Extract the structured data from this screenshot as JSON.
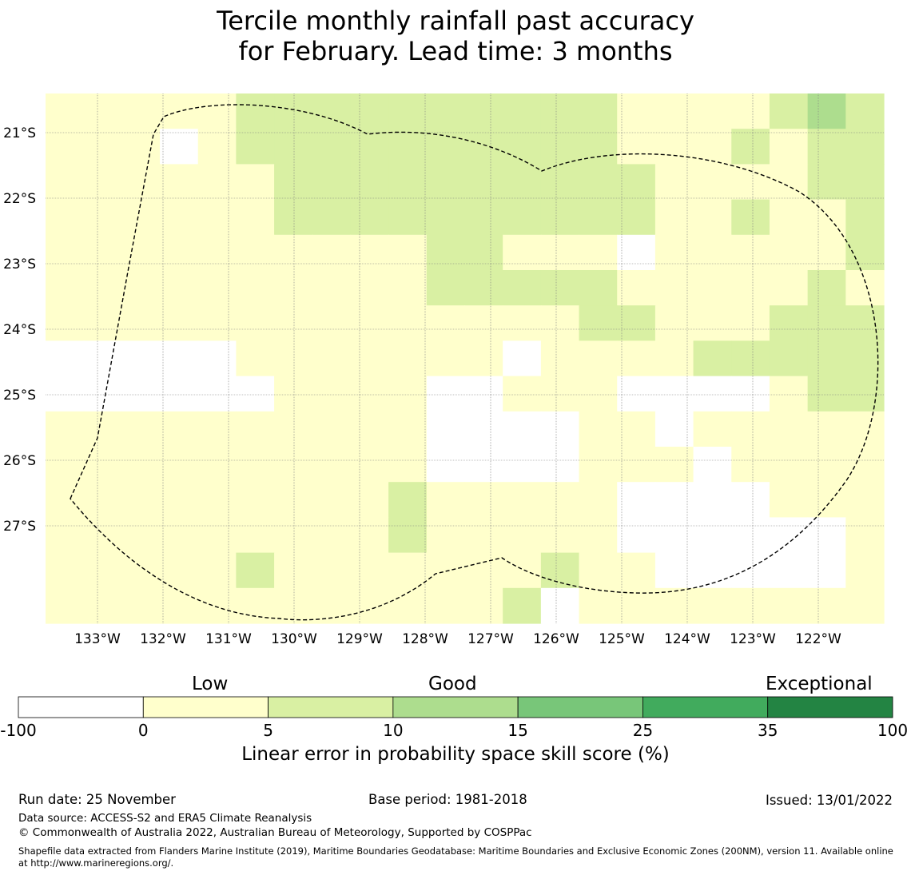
{
  "title": {
    "line1": "Tercile monthly rainfall past accuracy",
    "line2": "for February. Lead time: 3 months"
  },
  "map": {
    "lon_ticks": [
      "133°W",
      "132°W",
      "131°W",
      "130°W",
      "129°W",
      "128°W",
      "127°W",
      "126°W",
      "125°W",
      "124°W",
      "123°W",
      "122°W"
    ],
    "lat_ticks": [
      "21°S",
      "22°S",
      "23°S",
      "24°S",
      "25°S",
      "26°S",
      "27°S"
    ],
    "boundary": "dashed EEZ outline",
    "grid_classes": [
      "AAAAAAAAAAAAAAAAAAAAAAA",
      "BBBBBBBBBBBBBBBBBBBBBBC",
      "CCCCCCCCDDDDDDDDDDDDDDD",
      "EEEEEEEEEEEEEEEEEEEEEEE",
      "FFFFFFFFFFFFFFFFFFFFFFF",
      "GGGGGGGGGGGGGGGGGGGGGGG",
      "HHHHHHHHHHHHHHHHHHHHHHH",
      "IIIIIIIIIIIIIIIIIIIIIII",
      "JJJJJJJJJJJJJJJJJJJJJJJ",
      "KKKKKKKKKKKKKKKKKKKKKKK",
      "LLLLLLLLLLLLLLLLLLLLLLL",
      "MMMMMMMMMMMMMMMMMMMMMMM",
      "NNNNNNNNNNNNNNNNNNNNNNN",
      "OOOOOOOOOOOOOOOOOOOOOOO",
      "PPPPPPPPPPPPPPPPPPPPPPP"
    ],
    "grid": [
      "1111122222222221111232",
      "1110122222222221112122",
      "1111112222222222111122",
      "1111112222222222112112",
      "1111111111221110111112",
      "1111111111222221111121",
      "1111111111111122111222",
      "0000011111110111122222",
      "0000001111001110000122",
      "1111111111000011011111",
      "1111111111000011101111",
      "1111111112111110000111",
      "1111111112111110000001",
      "1111121111111211000001",
      "1111111111112011111111"
    ]
  },
  "legend": {
    "categories": [
      "Low",
      "Good",
      "Exceptional"
    ],
    "bins": [
      {
        "from": -100,
        "to": 0,
        "color": "#ffffff"
      },
      {
        "from": 0,
        "to": 5,
        "color": "#ffffcc"
      },
      {
        "from": 5,
        "to": 10,
        "color": "#d9f0a3"
      },
      {
        "from": 10,
        "to": 15,
        "color": "#addd8e"
      },
      {
        "from": 15,
        "to": 25,
        "color": "#78c679"
      },
      {
        "from": 25,
        "to": 35,
        "color": "#41ab5d"
      },
      {
        "from": 35,
        "to": 100,
        "color": "#238443"
      }
    ],
    "tick_labels": [
      "-100",
      "0",
      "5",
      "10",
      "15",
      "25",
      "35",
      "100"
    ],
    "label": "Linear error in probability space skill score (%)"
  },
  "footer": {
    "run_date": "Run date: 25 November",
    "base_period": "Base period: 1981-2018",
    "issued": "Issued: 13/01/2022",
    "data_source": "Data source: ACCESS-S2 and ERA5 Climate Reanalysis",
    "copyright": "© Commonwealth of Australia 2022, Australian Bureau of Meteorology, Supported by COSPPac",
    "shapefile": "Shapefile data extracted from Flanders Marine Institute (2019), Maritime Boundaries Geodatabase: Maritime Boundaries and Exclusive Economic Zones (200NM), version 11. Available online at http://www.marineregions.org/."
  }
}
